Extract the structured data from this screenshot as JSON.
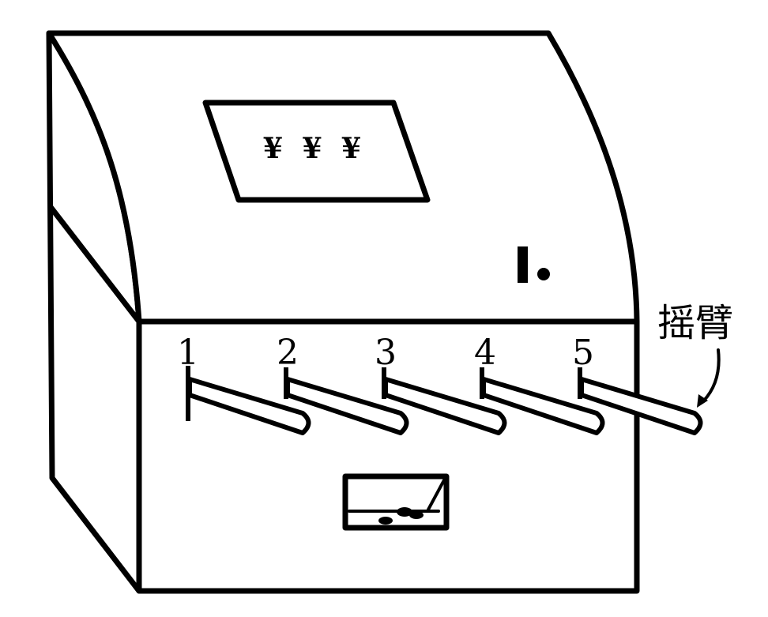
{
  "screen": {
    "text": "¥ ¥ ¥"
  },
  "lever_labels": [
    "1",
    "2",
    "3",
    "4",
    "5"
  ],
  "callout": {
    "label": "摇臂"
  }
}
